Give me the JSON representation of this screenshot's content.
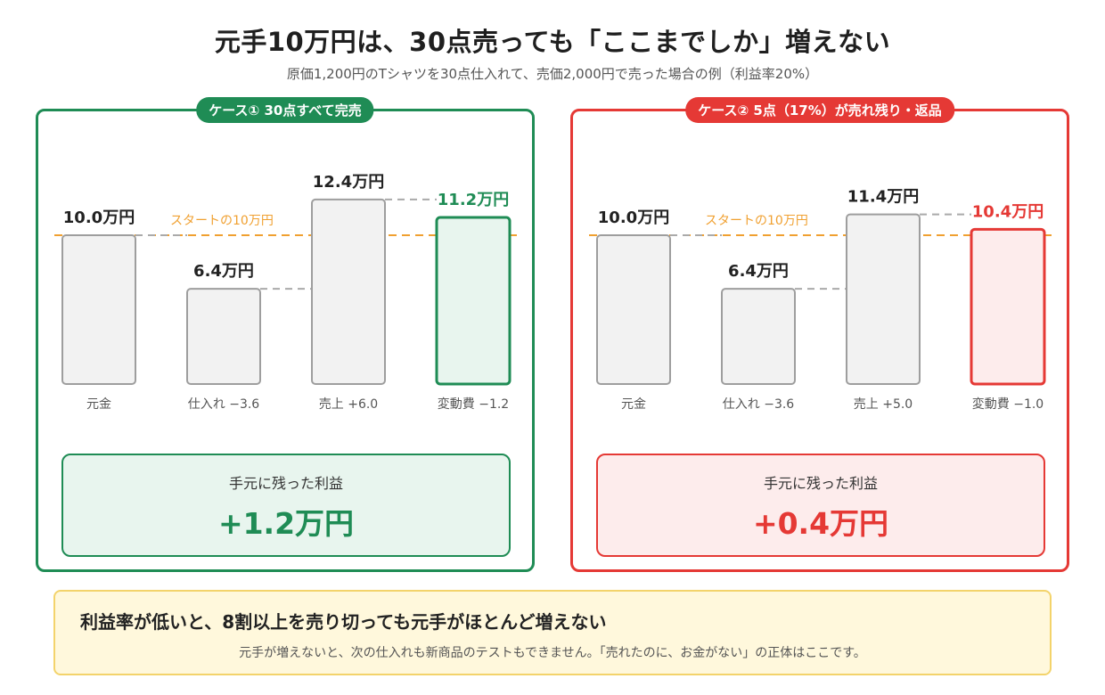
{
  "title": "元手10万円は、30点売っても「ここまでしか」増えない",
  "subtitle": "原価1,200円のTシャツを30点仕入れて、売価2,000円で売った場合の例（利益率20%）",
  "colors": {
    "green": "#1f8c55",
    "red": "#e53935",
    "start_line": "#f0a030",
    "bar_fill": "#f2f2f2",
    "bar_stroke": "#9e9e9e"
  },
  "panels": [
    {
      "tag": "ケース①  30点すべて完売",
      "start_label": "スタートの10万円",
      "profit_label": "手元に残った利益",
      "profit_value": "+1.2万円"
    },
    {
      "tag": "ケース②  5点（17%）が売れ残り・返品",
      "start_label": "スタートの10万円",
      "profit_label": "手元に残った利益",
      "profit_value": "+0.4万円"
    }
  ],
  "chart_data": [
    {
      "type": "bar",
      "categories": [
        "元金",
        "仕入れ −3.6",
        "売上 +6.0",
        "変動費 −1.2"
      ],
      "values": [
        10.0,
        6.4,
        12.4,
        11.2
      ],
      "value_labels": [
        "10.0万円",
        "6.4万円",
        "12.4万円",
        "11.2万円"
      ],
      "reference_line": 10.0,
      "unit": "万円"
    },
    {
      "type": "bar",
      "categories": [
        "元金",
        "仕入れ −3.6",
        "売上 +5.0",
        "変動費 −1.0"
      ],
      "values": [
        10.0,
        6.4,
        11.4,
        10.4
      ],
      "value_labels": [
        "10.0万円",
        "6.4万円",
        "11.4万円",
        "10.4万円"
      ],
      "reference_line": 10.0,
      "unit": "万円"
    }
  ],
  "footer": {
    "title": "利益率が低いと、8割以上を売り切っても元手がほとんど増えない",
    "text": "元手が増えないと、次の仕入れも新商品のテストもできません。「売れたのに、お金がない」の正体はここです。"
  }
}
